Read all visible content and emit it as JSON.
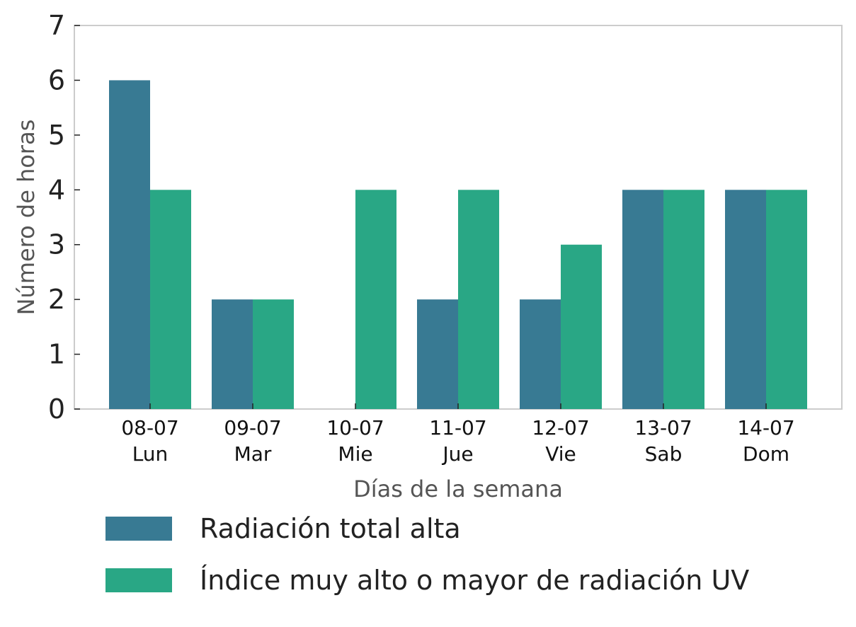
{
  "chart_data": {
    "type": "bar",
    "title": "",
    "xlabel": "Días de la semana",
    "ylabel": "Número de horas",
    "ylim": [
      0,
      7
    ],
    "yticks": [
      "0",
      "1",
      "2",
      "3",
      "4",
      "5",
      "6",
      "7"
    ],
    "grid": false,
    "legend_placement": "bottom",
    "categories": [
      {
        "date": "08-07",
        "day": "Lun"
      },
      {
        "date": "09-07",
        "day": "Mar"
      },
      {
        "date": "10-07",
        "day": "Mie"
      },
      {
        "date": "11-07",
        "day": "Jue"
      },
      {
        "date": "12-07",
        "day": "Vie"
      },
      {
        "date": "13-07",
        "day": "Sab"
      },
      {
        "date": "14-07",
        "day": "Dom"
      }
    ],
    "series": [
      {
        "name": "Radiación total alta",
        "color": "#387a93",
        "values": [
          6,
          2,
          0,
          2,
          2,
          4,
          4
        ]
      },
      {
        "name": "Índice muy alto o mayor de radiación UV",
        "color": "#29a785",
        "values": [
          4,
          2,
          4,
          4,
          3,
          4,
          4
        ]
      }
    ]
  }
}
